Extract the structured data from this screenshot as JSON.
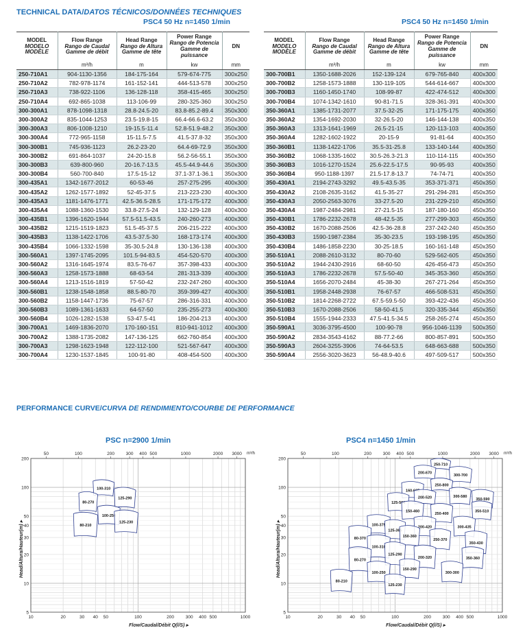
{
  "header": {
    "title_prefix": "TECHNICAL DATA/",
    "title_italic": "DATOS TÉCNICOS/DONNÉES TECHNIQUES",
    "left_subtitle": "PSC4  50 Hz  n=1450 1/min",
    "right_subtitle": "PSC4  50 Hz  n=1450 1/min"
  },
  "columns": {
    "model": [
      "MODEL",
      "MODELO",
      "MODÈLE"
    ],
    "flow": [
      "Flow Range",
      "Rango de Caudal",
      "Gamme de débit"
    ],
    "head": [
      "Head Range",
      "Rango de Altura",
      "Gamme de tête"
    ],
    "power": [
      "Power Range",
      "Rango de Potencia",
      "Gamme de puissance"
    ],
    "dn": "DN",
    "units": [
      "",
      "m³/h",
      "m",
      "kw",
      "mm"
    ]
  },
  "left_table": [
    [
      "250-710A1",
      "904-1130-1356",
      "184-175-164",
      "579-674-775",
      "300x250"
    ],
    [
      "250-710A2",
      "782-978-1174",
      "161-152-141",
      "444-513-578",
      "300x250"
    ],
    [
      "250-710A3",
      "738-922-1106",
      "136-128-118",
      "358-415-465",
      "300x250"
    ],
    [
      "250-710A4",
      "692-865-1038",
      "113-106-99",
      "280-325-360",
      "300x250"
    ],
    [
      "300-300A1",
      "878-1098-1318",
      "28.8-24.5-20",
      "83.8-85.2-89.4",
      "350x300"
    ],
    [
      "300-300A2",
      "835-1044-1253",
      "23.5-19.8-15",
      "66.4-66.6-63.2",
      "350x300"
    ],
    [
      "300-300A3",
      "806-1008-1210",
      "19-15.5-11.4",
      "52.8-51.9-48.2",
      "350x300"
    ],
    [
      "300-300A4",
      "772-965-1158",
      "15-11.5-7.5",
      "41.5-37.8-32",
      "350x300"
    ],
    [
      "300-300B1",
      "745-936-1123",
      "26.2-23-20",
      "64.4-69-72.9",
      "350x300"
    ],
    [
      "300-300B2",
      "691-864-1037",
      "24-20-15.8",
      "56.2-56-55.1",
      "350x300"
    ],
    [
      "300-300B3",
      "639-800-960",
      "20-16.7-13.5",
      "45.5-44.9-44.6",
      "350x300"
    ],
    [
      "300-300B4",
      "560-700-840",
      "17.5-15-12",
      "37.1-37.1-36.1",
      "350x300"
    ],
    [
      "300-435A1",
      "1342-1677-2012",
      "60-53-46",
      "257-275-295",
      "400x300"
    ],
    [
      "300-435A2",
      "1262-1577-1892",
      "52-45-37.5",
      "213-223-230",
      "400x300"
    ],
    [
      "300-435A3",
      "1181-1476-1771",
      "42.5-36.5-28.5",
      "171-175-172",
      "400x300"
    ],
    [
      "300-435A4",
      "1088-1360-1530",
      "33.8-27.5-24",
      "132-129-128",
      "400x300"
    ],
    [
      "300-435B1",
      "1396-1620-1944",
      "57.5-51.5-43.5",
      "240-260-273",
      "400x300"
    ],
    [
      "300-435B2",
      "1215-1519-1823",
      "51.5-45-37.5",
      "206-215-222",
      "400x300"
    ],
    [
      "300-435B3",
      "1138-1422-1706",
      "43.5-37.5-30",
      "168-173-174",
      "400x300"
    ],
    [
      "300-435B4",
      "1066-1332-1598",
      "35-30.5-24.8",
      "130-136-138",
      "400x300"
    ],
    [
      "300-560A1",
      "1397-1745-2095",
      "101.5-94-83.5",
      "454-520-570",
      "400x300"
    ],
    [
      "300-560A2",
      "1316-1645-1974",
      "83.5-76-67",
      "357-398-433",
      "400x300"
    ],
    [
      "300-560A3",
      "1258-1573-1888",
      "68-63-54",
      "281-313-339",
      "400x300"
    ],
    [
      "300-560A4",
      "1213-1516-1819",
      "57-50-42",
      "232-247-260",
      "400x300"
    ],
    [
      "300-560B1",
      "1238-1548-1858",
      "88.5-80-70",
      "359-399-427",
      "400x300"
    ],
    [
      "300-560B2",
      "1158-1447-1736",
      "75-67-57",
      "286-316-331",
      "400x300"
    ],
    [
      "300-560B3",
      "1089-1361-1633",
      "64-57-50",
      "235-255-273",
      "400x300"
    ],
    [
      "300-560B4",
      "1026-1282-1538",
      "53-47.5-41",
      "186-204-213",
      "400x300"
    ],
    [
      "300-700A1",
      "1469-1836-2070",
      "170-160-151",
      "810-941-1012",
      "400x300"
    ],
    [
      "300-700A2",
      "1388-1735-2082",
      "147-136-125",
      "662-760-854",
      "400x300"
    ],
    [
      "300-700A3",
      "1298-1623-1948",
      "122-112-100",
      "521-567-647",
      "400x300"
    ],
    [
      "300-700A4",
      "1230-1537-1845",
      "100-91-80",
      "408-454-500",
      "400x300"
    ]
  ],
  "right_table": [
    [
      "300-700B1",
      "1350-1688-2026",
      "152-139-124",
      "679-765-840",
      "400x300"
    ],
    [
      "300-700B2",
      "1258-1573-1888",
      "130-119-105",
      "544-614-667",
      "400x300"
    ],
    [
      "300-700B3",
      "1160-1450-1740",
      "108-99-87",
      "422-474-512",
      "400x300"
    ],
    [
      "300-700B4",
      "1074-1342-1610",
      "90-81-71.5",
      "328-361-391",
      "400x300"
    ],
    [
      "350-360A1",
      "1385-1731-2077",
      "37.5-32-25",
      "171-175-175",
      "400x350"
    ],
    [
      "350-360A2",
      "1354-1692-2030",
      "32-26.5-20",
      "146-144-138",
      "400x350"
    ],
    [
      "350-360A3",
      "1313-1641-1969",
      "26.5-21-15",
      "120-113-103",
      "400x350"
    ],
    [
      "350-360A4",
      "1282-1602-1922",
      "20-15-9",
      "91-81-64",
      "400x350"
    ],
    [
      "350-360B1",
      "1138-1422-1706",
      "35.5-31-25.8",
      "133-140-144",
      "400x350"
    ],
    [
      "350-360B2",
      "1068-1335-1602",
      "30.5-26.3-21.3",
      "110-114-115",
      "400x350"
    ],
    [
      "350-360B3",
      "1016-1270-1524",
      "25.6-22.5-17.5",
      "90-95-93",
      "400x350"
    ],
    [
      "350-360B4",
      "950-1188-1397",
      "21.5-17.8-13.7",
      "74-74-71",
      "400x350"
    ],
    [
      "350-430A1",
      "2194-2743-3292",
      "49.5-43.5-35",
      "353-371-371",
      "450x350"
    ],
    [
      "350-430A2",
      "2108-2635-3162",
      "41.5-35-27",
      "291-294-281",
      "450x350"
    ],
    [
      "350-430A3",
      "2050-2563-3076",
      "33-27.5-20",
      "231-229-210",
      "450x350"
    ],
    [
      "350-430A4",
      "1987-2484-2981",
      "27-21.5-15",
      "187-180-160",
      "450x350"
    ],
    [
      "350-430B1",
      "1786-2232-2678",
      "48-42.5-35",
      "277-299-303",
      "450x350"
    ],
    [
      "350-430B2",
      "1670-2088-2506",
      "42.5-36-28.8",
      "237-242-240",
      "450x350"
    ],
    [
      "350-430B3",
      "1590-1987-2384",
      "35-30-23.5",
      "193-198-195",
      "450x350"
    ],
    [
      "350-430B4",
      "1486-1858-2230",
      "30-25-18.5",
      "160-161-148",
      "450x350"
    ],
    [
      "350-510A1",
      "2088-2610-3132",
      "80-70-60",
      "529-562-605",
      "450x350"
    ],
    [
      "350-510A2",
      "1944-2430-2916",
      "68-60-50",
      "426-456-473",
      "450x350"
    ],
    [
      "350-510A3",
      "1786-2232-2678",
      "57.5-50-40",
      "345-353-360",
      "450x350"
    ],
    [
      "350-510A4",
      "1656-2070-2484",
      "45-38-30",
      "267-271-264",
      "450x350"
    ],
    [
      "350-510B1",
      "1958-2448-2938",
      "76-67-57",
      "466-508-531",
      "450x350"
    ],
    [
      "350-510B2",
      "1814-2268-2722",
      "67.5-59.5-50",
      "393-422-436",
      "450x350"
    ],
    [
      "350-510B3",
      "1670-2088-2506",
      "58-50-41.5",
      "320-335-344",
      "450x350"
    ],
    [
      "350-510B4",
      "1555-1944-2333",
      "47.5-41.5-34.5",
      "258-265-274",
      "450x350"
    ],
    [
      "350-590A1",
      "3036-3795-4500",
      "100-90-78",
      "956-1046-1139",
      "500x350"
    ],
    [
      "350-590A2",
      "2834-3543-4162",
      "88-77.2-66",
      "800-857-891",
      "500x350"
    ],
    [
      "350-590A3",
      "2604-3255-3906",
      "74-64-53.5",
      "648-663-688",
      "500x350"
    ],
    [
      "350-590A4",
      "2556-3020-3623",
      "56-48.9-40.6",
      "497-509-517",
      "500x350"
    ]
  ],
  "performance": {
    "section_prefix": "PERFORMANCE CURVE/",
    "section_italic": "CURVA DE RENDIMIENTO/COURBE DE PERFORMANCE",
    "left_title": "PSC  n=2900 1/min",
    "right_title": "PSC4  n=1450 1/min",
    "x_label": "Flow/Caudal/Débit Q(l/S)",
    "y_label": "Head/Altura/Hauteur(m)",
    "top_unit": "m³/h",
    "bottom_ticks": [
      "10",
      "20",
      "30",
      "40",
      "50",
      "100",
      "200",
      "300",
      "400",
      "500",
      "1000"
    ],
    "top_ticks": [
      "50",
      "100",
      "200",
      "300",
      "400",
      "500",
      "1000",
      "2000",
      "3000"
    ],
    "y_ticks": [
      "200",
      "100",
      "50",
      "40",
      "30",
      "20",
      "10",
      "5"
    ],
    "left_zones": [
      "100-310",
      "80-270",
      "125-290",
      "100-250",
      "80-210",
      "125-230"
    ],
    "right_zones": [
      "250-710",
      "200-670",
      "300-700",
      "250-800",
      "160-605",
      "200-520",
      "300-580",
      "350-590",
      "125-500",
      "150-460",
      "250-400",
      "350-510",
      "100-375",
      "125-365",
      "200-420",
      "300-435",
      "80-370",
      "150-360",
      "250-370",
      "350-430",
      "100-310",
      "125-290",
      "200-320",
      "350-360",
      "80-270",
      "150-290",
      "300-300",
      "100-250",
      "80-210",
      "125-230"
    ]
  },
  "chart_data": [
    {
      "type": "other",
      "title": "PSC  n=2900 1/min",
      "xlabel": "Flow/Caudal/Débit Q(l/S)",
      "ylabel": "Head/Altura/Hauteur(m)",
      "x_scale": "log",
      "y_scale": "log",
      "xlim": [
        10,
        1000
      ],
      "ylim": [
        5,
        200
      ],
      "zones": [
        {
          "name": "100-310",
          "q": [
            38,
            60
          ],
          "h": [
            80,
            120
          ]
        },
        {
          "name": "80-270",
          "q": [
            28,
            42
          ],
          "h": [
            55,
            90
          ]
        },
        {
          "name": "125-290",
          "q": [
            60,
            95
          ],
          "h": [
            60,
            100
          ]
        },
        {
          "name": "100-250",
          "q": [
            42,
            68
          ],
          "h": [
            40,
            65
          ]
        },
        {
          "name": "80-210",
          "q": [
            25,
            42
          ],
          "h": [
            30,
            55
          ]
        },
        {
          "name": "125-230",
          "q": [
            60,
            100
          ],
          "h": [
            33,
            58
          ]
        }
      ]
    },
    {
      "type": "other",
      "title": "PSC4  n=1450 1/min",
      "xlabel": "Flow/Caudal/Débit Q(l/S)",
      "ylabel": "Head/Altura/Hauteur(m)",
      "x_scale": "log",
      "y_scale": "log",
      "xlim": [
        10,
        1000
      ],
      "ylim": [
        5,
        200
      ],
      "zones": [
        {
          "name": "250-710",
          "q": [
            215,
            330
          ],
          "h": [
            150,
            200
          ]
        },
        {
          "name": "200-670",
          "q": [
            150,
            240
          ],
          "h": [
            120,
            170
          ]
        },
        {
          "name": "300-700",
          "q": [
            320,
            520
          ],
          "h": [
            110,
            165
          ]
        },
        {
          "name": "250-800",
          "q": [
            215,
            345
          ],
          "h": [
            90,
            125
          ]
        },
        {
          "name": "160-605",
          "q": [
            115,
            185
          ],
          "h": [
            75,
            115
          ]
        },
        {
          "name": "200-520",
          "q": [
            150,
            240
          ],
          "h": [
            65,
            95
          ]
        },
        {
          "name": "300-580",
          "q": [
            320,
            510
          ],
          "h": [
            65,
            100
          ]
        },
        {
          "name": "350-590",
          "q": [
            520,
            830
          ],
          "h": [
            60,
            95
          ]
        },
        {
          "name": "125-500",
          "q": [
            85,
            135
          ],
          "h": [
            55,
            88
          ]
        },
        {
          "name": "150-460",
          "q": [
            115,
            185
          ],
          "h": [
            45,
            72
          ]
        },
        {
          "name": "250-400",
          "q": [
            215,
            345
          ],
          "h": [
            42,
            68
          ]
        },
        {
          "name": "350-510",
          "q": [
            520,
            800
          ],
          "h": [
            45,
            72
          ]
        },
        {
          "name": "100-375",
          "q": [
            55,
            90
          ],
          "h": [
            32,
            52
          ]
        },
        {
          "name": "125-365",
          "q": [
            80,
            125
          ],
          "h": [
            28,
            46
          ]
        },
        {
          "name": "200-420",
          "q": [
            150,
            240
          ],
          "h": [
            30,
            50
          ]
        },
        {
          "name": "300-435",
          "q": [
            350,
            560
          ],
          "h": [
            30,
            50
          ]
        },
        {
          "name": "80-370",
          "q": [
            37,
            60
          ],
          "h": [
            22,
            40
          ]
        },
        {
          "name": "150-360",
          "q": [
            110,
            170
          ],
          "h": [
            24,
            40
          ]
        },
        {
          "name": "250-370",
          "q": [
            210,
            330
          ],
          "h": [
            22,
            37
          ]
        },
        {
          "name": "350-430",
          "q": [
            450,
            720
          ],
          "h": [
            20,
            35
          ]
        },
        {
          "name": "100-310",
          "q": [
            55,
            90
          ],
          "h": [
            18,
            32
          ]
        },
        {
          "name": "125-290",
          "q": [
            80,
            125
          ],
          "h": [
            15,
            27
          ]
        },
        {
          "name": "200-320",
          "q": [
            150,
            240
          ],
          "h": [
            14,
            25
          ]
        },
        {
          "name": "350-360",
          "q": [
            420,
            670
          ],
          "h": [
            14,
            24
          ]
        },
        {
          "name": "80-270",
          "q": [
            37,
            60
          ],
          "h": [
            13,
            24
          ]
        },
        {
          "name": "150-290",
          "q": [
            110,
            170
          ],
          "h": [
            11,
            18
          ]
        },
        {
          "name": "300-300",
          "q": [
            270,
            430
          ],
          "h": [
            10,
            17
          ]
        },
        {
          "name": "100-250",
          "q": [
            55,
            90
          ],
          "h": [
            10,
            17
          ]
        },
        {
          "name": "80-210",
          "q": [
            25,
            40
          ],
          "h": [
            8,
            14
          ]
        },
        {
          "name": "125-230",
          "q": [
            80,
            125
          ],
          "h": [
            7.5,
            12.5
          ]
        }
      ]
    }
  ]
}
